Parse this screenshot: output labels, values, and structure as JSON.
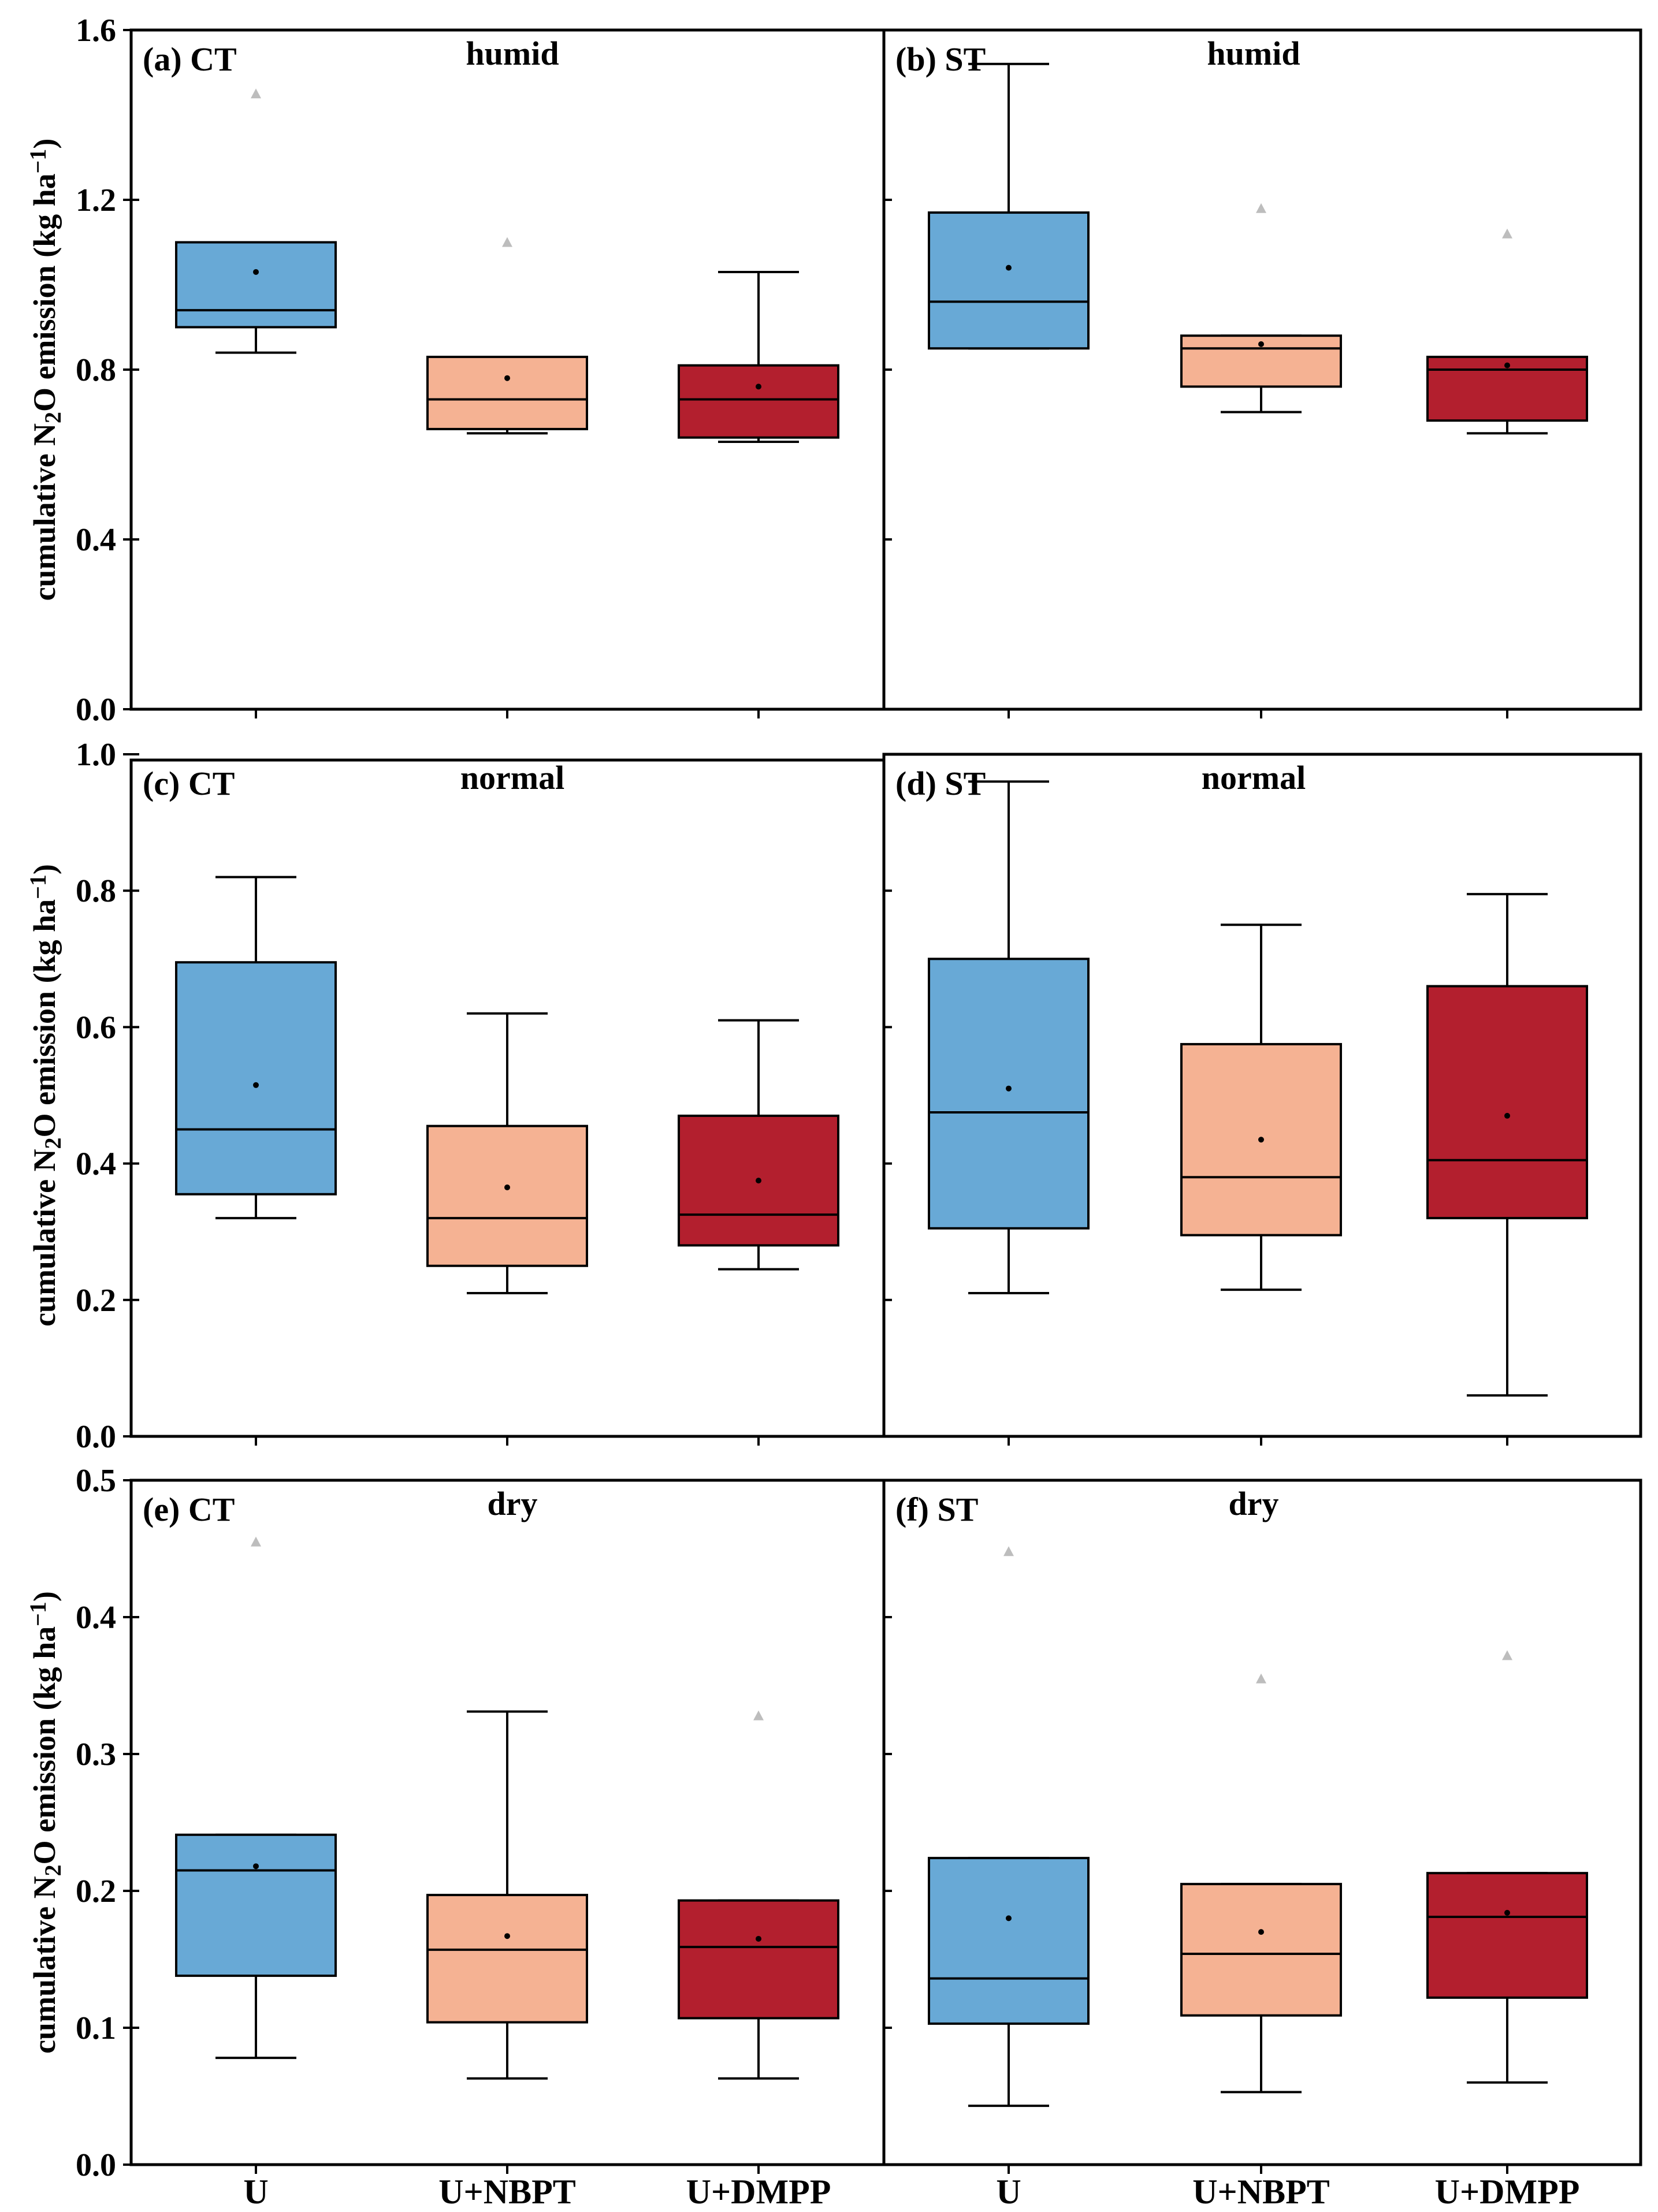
{
  "colors": {
    "U": "#68a9d6",
    "U+NBPT": "#f5b293",
    "U+DMPP": "#b31f2e",
    "outlier": "#bdbdbd"
  },
  "chart_data": [
    {
      "type": "box",
      "panel_label": "(a) CT",
      "condition": "humid",
      "ylabel": "cumulative N2O emission (kg ha-1)",
      "ylim": [
        0,
        1.6
      ],
      "yticks": [
        "0.0",
        "0.4",
        "0.8",
        "1.2",
        "1.6"
      ],
      "categories": [
        "U",
        "U+NBPT",
        "U+DMPP"
      ],
      "boxes": [
        {
          "whisker_low": 0.84,
          "q1": 0.9,
          "median": 0.94,
          "q3": 1.1,
          "whisker_high": 1.1,
          "mean": 1.03,
          "outlier": 1.45
        },
        {
          "whisker_low": 0.65,
          "q1": 0.66,
          "median": 0.73,
          "q3": 0.83,
          "whisker_high": 0.83,
          "mean": 0.78,
          "outlier": 1.1
        },
        {
          "whisker_low": 0.63,
          "q1": 0.64,
          "median": 0.73,
          "q3": 0.81,
          "whisker_high": 1.03,
          "mean": 0.76,
          "outlier": null
        }
      ]
    },
    {
      "type": "box",
      "panel_label": "(b) ST",
      "condition": "humid",
      "ylim": [
        0,
        1.6
      ],
      "categories": [
        "U",
        "U+NBPT",
        "U+DMPP"
      ],
      "boxes": [
        {
          "whisker_low": 0.85,
          "q1": 0.85,
          "median": 0.96,
          "q3": 1.17,
          "whisker_high": 1.52,
          "mean": 1.04,
          "outlier": null
        },
        {
          "whisker_low": 0.7,
          "q1": 0.76,
          "median": 0.85,
          "q3": 0.88,
          "whisker_high": 0.88,
          "mean": 0.86,
          "outlier": 1.18
        },
        {
          "whisker_low": 0.65,
          "q1": 0.68,
          "median": 0.8,
          "q3": 0.83,
          "whisker_high": 0.83,
          "mean": 0.81,
          "outlier": 1.12
        }
      ]
    },
    {
      "type": "box",
      "panel_label": "(c) CT",
      "condition": "normal",
      "ylabel": "cumulative N2O emission (kg ha-1)",
      "ylim": [
        0,
        1.0
      ],
      "yticks": [
        "0.0",
        "0.2",
        "0.4",
        "0.6",
        "0.8",
        "1.0"
      ],
      "categories": [
        "U",
        "U+NBPT",
        "U+DMPP"
      ],
      "boxes": [
        {
          "whisker_low": 0.32,
          "q1": 0.355,
          "median": 0.45,
          "q3": 0.695,
          "whisker_high": 0.82,
          "mean": 0.515,
          "outlier": null
        },
        {
          "whisker_low": 0.21,
          "q1": 0.25,
          "median": 0.32,
          "q3": 0.455,
          "whisker_high": 0.62,
          "mean": 0.365,
          "outlier": null
        },
        {
          "whisker_low": 0.245,
          "q1": 0.28,
          "median": 0.325,
          "q3": 0.47,
          "whisker_high": 0.61,
          "mean": 0.375,
          "outlier": null
        }
      ]
    },
    {
      "type": "box",
      "panel_label": "(d) ST",
      "condition": "normal",
      "ylim": [
        0,
        1.0
      ],
      "categories": [
        "U",
        "U+NBPT",
        "U+DMPP"
      ],
      "boxes": [
        {
          "whisker_low": 0.21,
          "q1": 0.305,
          "median": 0.475,
          "q3": 0.7,
          "whisker_high": 0.96,
          "mean": 0.51,
          "outlier": null
        },
        {
          "whisker_low": 0.215,
          "q1": 0.295,
          "median": 0.38,
          "q3": 0.575,
          "whisker_high": 0.75,
          "mean": 0.435,
          "outlier": null
        },
        {
          "whisker_low": 0.06,
          "q1": 0.32,
          "median": 0.405,
          "q3": 0.66,
          "whisker_high": 0.795,
          "mean": 0.47,
          "outlier": null
        }
      ]
    },
    {
      "type": "box",
      "panel_label": "(e) CT",
      "condition": "dry",
      "ylabel": "cumulative N2O emission (kg ha-1)",
      "ylim": [
        0,
        0.5
      ],
      "yticks": [
        "0.0",
        "0.1",
        "0.2",
        "0.3",
        "0.4",
        "0.5"
      ],
      "categories": [
        "U",
        "U+NBPT",
        "U+DMPP"
      ],
      "boxes": [
        {
          "whisker_low": 0.078,
          "q1": 0.138,
          "median": 0.215,
          "q3": 0.241,
          "whisker_high": 0.241,
          "mean": 0.218,
          "outlier": 0.455
        },
        {
          "whisker_low": 0.063,
          "q1": 0.104,
          "median": 0.157,
          "q3": 0.197,
          "whisker_high": 0.331,
          "mean": 0.167,
          "outlier": null
        },
        {
          "whisker_low": 0.063,
          "q1": 0.107,
          "median": 0.159,
          "q3": 0.193,
          "whisker_high": 0.193,
          "mean": 0.165,
          "outlier": 0.328
        }
      ]
    },
    {
      "type": "box",
      "panel_label": "(f) ST",
      "condition": "dry",
      "ylim": [
        0,
        0.5
      ],
      "categories": [
        "U",
        "U+NBPT",
        "U+DMPP"
      ],
      "boxes": [
        {
          "whisker_low": 0.043,
          "q1": 0.103,
          "median": 0.136,
          "q3": 0.224,
          "whisker_high": 0.224,
          "mean": 0.18,
          "outlier": 0.448
        },
        {
          "whisker_low": 0.053,
          "q1": 0.109,
          "median": 0.154,
          "q3": 0.205,
          "whisker_high": 0.205,
          "mean": 0.17,
          "outlier": 0.355
        },
        {
          "whisker_low": 0.06,
          "q1": 0.122,
          "median": 0.181,
          "q3": 0.213,
          "whisker_high": 0.213,
          "mean": 0.184,
          "outlier": 0.372
        }
      ]
    }
  ]
}
